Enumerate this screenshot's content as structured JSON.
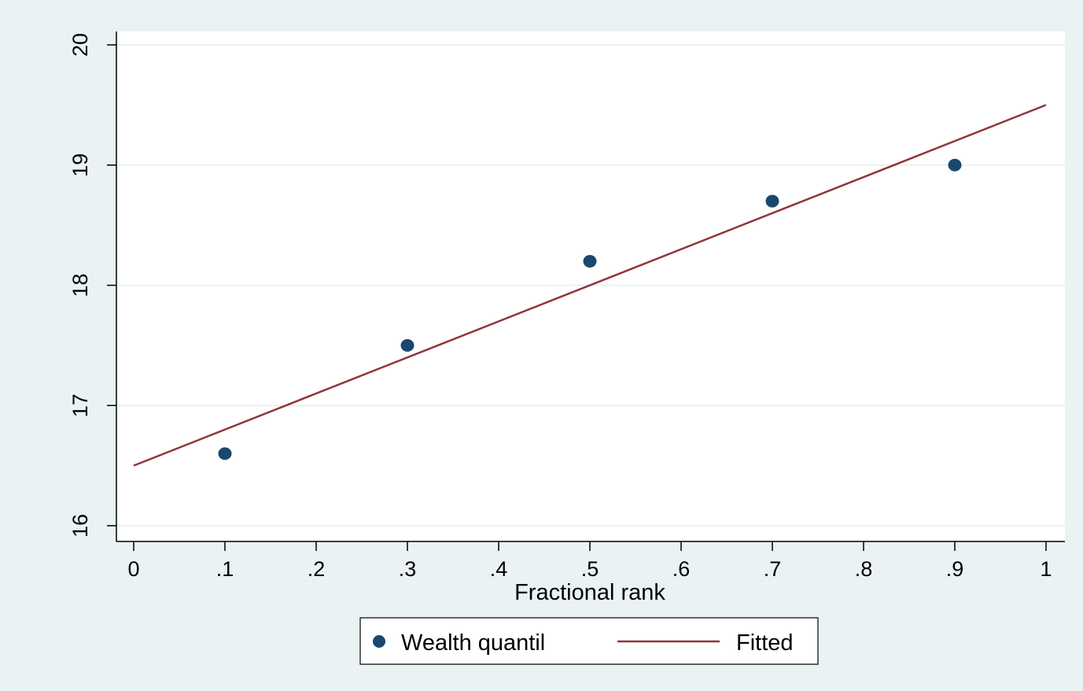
{
  "chart_data": {
    "type": "scatter",
    "title": "",
    "xlabel": "Fractional rank",
    "ylabel": "",
    "xlim": [
      0,
      1
    ],
    "ylim": [
      16,
      20
    ],
    "x_ticks": [
      0,
      0.1,
      0.2,
      0.3,
      0.4,
      0.5,
      0.6,
      0.7,
      0.8,
      0.9,
      1
    ],
    "x_tick_labels": [
      "0",
      ".1",
      ".2",
      ".3",
      ".4",
      ".5",
      ".6",
      ".7",
      ".8",
      ".9",
      "1"
    ],
    "y_ticks": [
      16,
      17,
      18,
      19,
      20
    ],
    "y_tick_labels": [
      "16",
      "17",
      "18",
      "19",
      "20"
    ],
    "grid": true,
    "legend_position": "bottom",
    "series": [
      {
        "name": "Wealth quantil",
        "type": "scatter",
        "color": "#1a476f",
        "x": [
          0.1,
          0.3,
          0.5,
          0.7,
          0.9
        ],
        "y": [
          16.6,
          17.5,
          18.2,
          18.7,
          19.0
        ]
      },
      {
        "name": "Fitted",
        "type": "line",
        "color": "#90353b",
        "x": [
          0,
          1
        ],
        "y": [
          16.5,
          19.5
        ]
      }
    ]
  }
}
